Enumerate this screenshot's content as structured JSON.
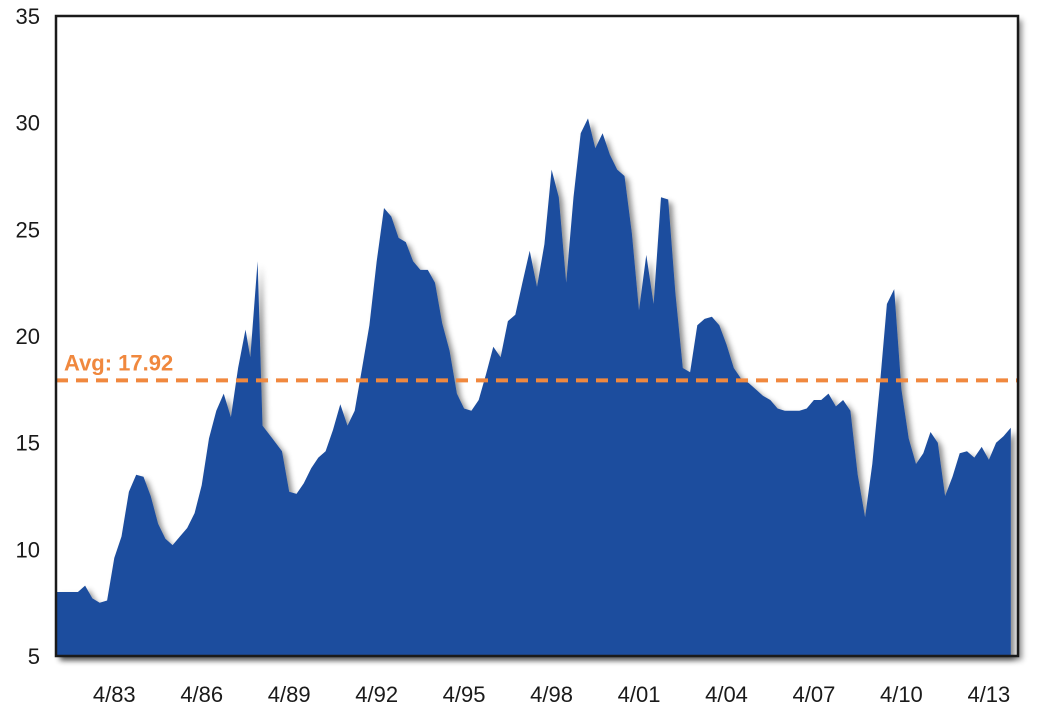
{
  "chart_data": {
    "type": "area",
    "title": "",
    "xlabel": "",
    "ylabel": "",
    "ylim": [
      5,
      35
    ],
    "yticks": [
      5,
      10,
      15,
      20,
      25,
      30,
      35
    ],
    "xlim": [
      "1981-04-01",
      "2014-04-01"
    ],
    "xtick_labels": [
      {
        "label": "4/83",
        "date": "1983-04-01"
      },
      {
        "label": "4/86",
        "date": "1986-04-01"
      },
      {
        "label": "4/89",
        "date": "1989-04-01"
      },
      {
        "label": "4/92",
        "date": "1992-04-01"
      },
      {
        "label": "4/95",
        "date": "1995-04-01"
      },
      {
        "label": "4/98",
        "date": "1998-04-01"
      },
      {
        "label": "4/01",
        "date": "2001-04-01"
      },
      {
        "label": "4/04",
        "date": "2004-04-01"
      },
      {
        "label": "4/07",
        "date": "2007-04-01"
      },
      {
        "label": "4/10",
        "date": "2010-04-01"
      },
      {
        "label": "4/13",
        "date": "2013-04-01"
      }
    ],
    "average": {
      "value": 17.92,
      "label": "Avg: 17.92"
    },
    "series": [
      {
        "points": [
          [
            "1982-01-01",
            8.0
          ],
          [
            "1982-04-01",
            8.3
          ],
          [
            "1982-07-01",
            7.7
          ],
          [
            "1982-10-01",
            7.5
          ],
          [
            "1983-01-01",
            7.6
          ],
          [
            "1983-04-01",
            9.6
          ],
          [
            "1983-07-01",
            10.6
          ],
          [
            "1983-10-01",
            12.7
          ],
          [
            "1984-01-01",
            13.5
          ],
          [
            "1984-04-01",
            13.4
          ],
          [
            "1984-07-01",
            12.5
          ],
          [
            "1984-10-01",
            11.2
          ],
          [
            "1985-01-01",
            10.5
          ],
          [
            "1985-04-01",
            10.2
          ],
          [
            "1985-07-01",
            10.6
          ],
          [
            "1985-10-01",
            11.0
          ],
          [
            "1986-01-01",
            11.7
          ],
          [
            "1986-04-01",
            13.0
          ],
          [
            "1986-07-01",
            15.2
          ],
          [
            "1986-10-01",
            16.5
          ],
          [
            "1987-01-01",
            17.3
          ],
          [
            "1987-04-01",
            16.2
          ],
          [
            "1987-07-01",
            18.5
          ],
          [
            "1987-10-01",
            20.3
          ],
          [
            "1987-12-01",
            19.0
          ],
          [
            "1988-03-01",
            23.5
          ],
          [
            "1988-05-01",
            15.8
          ],
          [
            "1988-09-01",
            15.2
          ],
          [
            "1989-01-01",
            14.6
          ],
          [
            "1989-04-01",
            12.7
          ],
          [
            "1989-07-01",
            12.6
          ],
          [
            "1989-10-01",
            13.1
          ],
          [
            "1990-01-01",
            13.8
          ],
          [
            "1990-04-01",
            14.3
          ],
          [
            "1990-07-01",
            14.6
          ],
          [
            "1990-10-01",
            15.6
          ],
          [
            "1991-01-01",
            16.8
          ],
          [
            "1991-04-01",
            15.8
          ],
          [
            "1991-07-01",
            16.5
          ],
          [
            "1991-10-01",
            18.5
          ],
          [
            "1992-01-01",
            20.5
          ],
          [
            "1992-04-01",
            23.5
          ],
          [
            "1992-07-01",
            26.0
          ],
          [
            "1992-10-01",
            25.6
          ],
          [
            "1993-01-01",
            24.6
          ],
          [
            "1993-04-01",
            24.4
          ],
          [
            "1993-07-01",
            23.5
          ],
          [
            "1993-10-01",
            23.1
          ],
          [
            "1994-01-01",
            23.1
          ],
          [
            "1994-04-01",
            22.5
          ],
          [
            "1994-07-01",
            20.6
          ],
          [
            "1994-10-01",
            19.3
          ],
          [
            "1995-01-01",
            17.3
          ],
          [
            "1995-04-01",
            16.6
          ],
          [
            "1995-07-01",
            16.5
          ],
          [
            "1995-10-01",
            17.0
          ],
          [
            "1996-01-01",
            18.2
          ],
          [
            "1996-04-01",
            19.5
          ],
          [
            "1996-07-01",
            19.0
          ],
          [
            "1996-10-01",
            20.7
          ],
          [
            "1997-01-01",
            21.0
          ],
          [
            "1997-04-01",
            22.5
          ],
          [
            "1997-07-01",
            24.0
          ],
          [
            "1997-10-01",
            22.3
          ],
          [
            "1998-01-01",
            24.3
          ],
          [
            "1998-04-01",
            27.8
          ],
          [
            "1998-07-01",
            26.5
          ],
          [
            "1998-10-01",
            22.5
          ],
          [
            "1999-01-01",
            26.5
          ],
          [
            "1999-04-01",
            29.5
          ],
          [
            "1999-07-01",
            30.2
          ],
          [
            "1999-10-01",
            28.8
          ],
          [
            "2000-01-01",
            29.5
          ],
          [
            "2000-04-01",
            28.5
          ],
          [
            "2000-07-01",
            27.8
          ],
          [
            "2000-10-01",
            27.5
          ],
          [
            "2001-01-01",
            24.8
          ],
          [
            "2001-04-01",
            21.2
          ],
          [
            "2001-07-01",
            23.8
          ],
          [
            "2001-10-01",
            21.5
          ],
          [
            "2002-01-01",
            26.5
          ],
          [
            "2002-04-01",
            26.4
          ],
          [
            "2002-07-01",
            22.0
          ],
          [
            "2002-10-01",
            18.5
          ],
          [
            "2003-01-01",
            18.3
          ],
          [
            "2003-04-01",
            20.5
          ],
          [
            "2003-07-01",
            20.8
          ],
          [
            "2003-10-01",
            20.9
          ],
          [
            "2004-01-01",
            20.5
          ],
          [
            "2004-04-01",
            19.6
          ],
          [
            "2004-07-01",
            18.5
          ],
          [
            "2004-10-01",
            18.0
          ],
          [
            "2005-01-01",
            17.8
          ],
          [
            "2005-04-01",
            17.5
          ],
          [
            "2005-07-01",
            17.2
          ],
          [
            "2005-10-01",
            17.0
          ],
          [
            "2006-01-01",
            16.6
          ],
          [
            "2006-04-01",
            16.5
          ],
          [
            "2006-07-01",
            16.5
          ],
          [
            "2006-10-01",
            16.5
          ],
          [
            "2007-01-01",
            16.6
          ],
          [
            "2007-04-01",
            17.0
          ],
          [
            "2007-07-01",
            17.0
          ],
          [
            "2007-10-01",
            17.3
          ],
          [
            "2008-01-01",
            16.7
          ],
          [
            "2008-04-01",
            17.0
          ],
          [
            "2008-07-01",
            16.5
          ],
          [
            "2008-10-01",
            13.5
          ],
          [
            "2009-01-01",
            11.5
          ],
          [
            "2009-04-01",
            14.0
          ],
          [
            "2009-07-01",
            17.5
          ],
          [
            "2009-10-01",
            21.5
          ],
          [
            "2010-01-01",
            22.2
          ],
          [
            "2010-04-01",
            17.5
          ],
          [
            "2010-07-01",
            15.2
          ],
          [
            "2010-10-01",
            14.0
          ],
          [
            "2011-01-01",
            14.5
          ],
          [
            "2011-04-01",
            15.5
          ],
          [
            "2011-07-01",
            15.0
          ],
          [
            "2011-10-01",
            12.5
          ],
          [
            "2012-01-01",
            13.4
          ],
          [
            "2012-04-01",
            14.5
          ],
          [
            "2012-07-01",
            14.6
          ],
          [
            "2012-10-01",
            14.3
          ],
          [
            "2013-01-01",
            14.8
          ],
          [
            "2013-04-01",
            14.2
          ],
          [
            "2013-07-01",
            15.0
          ],
          [
            "2013-10-01",
            15.3
          ],
          [
            "2014-01-01",
            15.7
          ]
        ]
      }
    ],
    "colors": {
      "fill": "#1f4e9e",
      "average": "#f0883e",
      "frame": "#1a1a1a"
    },
    "grid": false,
    "legend": "none"
  }
}
